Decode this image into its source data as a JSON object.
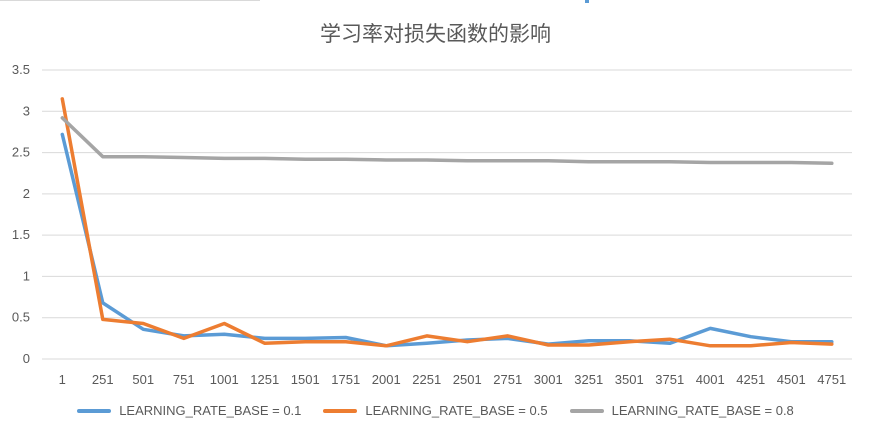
{
  "chart_data": {
    "type": "line",
    "title": "学习率对损失函数的影响",
    "xlabel": "",
    "ylabel": "",
    "ylim": [
      0,
      3.5
    ],
    "yticks": [
      "0",
      "0.5",
      "1",
      "1.5",
      "2",
      "2.5",
      "3",
      "3.5"
    ],
    "categories": [
      "1",
      "251",
      "501",
      "751",
      "1001",
      "1251",
      "1501",
      "1751",
      "2001",
      "2251",
      "2501",
      "2751",
      "3001",
      "3251",
      "3501",
      "3751",
      "4001",
      "4251",
      "4501",
      "4751"
    ],
    "grid": true,
    "legend": "bottom",
    "series": [
      {
        "name": "LEARNING_RATE_BASE = 0.1",
        "color": "#5b9bd5",
        "values": [
          2.72,
          0.68,
          0.36,
          0.28,
          0.3,
          0.25,
          0.25,
          0.26,
          0.16,
          0.19,
          0.23,
          0.25,
          0.18,
          0.22,
          0.22,
          0.19,
          0.37,
          0.27,
          0.21,
          0.21
        ]
      },
      {
        "name": "LEARNING_RATE_BASE = 0.5",
        "color": "#ed7d31",
        "values": [
          3.15,
          0.48,
          0.43,
          0.25,
          0.43,
          0.19,
          0.21,
          0.21,
          0.16,
          0.28,
          0.21,
          0.28,
          0.17,
          0.17,
          0.21,
          0.24,
          0.16,
          0.16,
          0.2,
          0.18
        ]
      },
      {
        "name": "LEARNING_RATE_BASE = 0.8",
        "color": "#a5a5a5",
        "values": [
          2.92,
          2.45,
          2.45,
          2.44,
          2.43,
          2.43,
          2.42,
          2.42,
          2.41,
          2.41,
          2.4,
          2.4,
          2.4,
          2.39,
          2.39,
          2.39,
          2.38,
          2.38,
          2.38,
          2.37
        ]
      }
    ]
  }
}
